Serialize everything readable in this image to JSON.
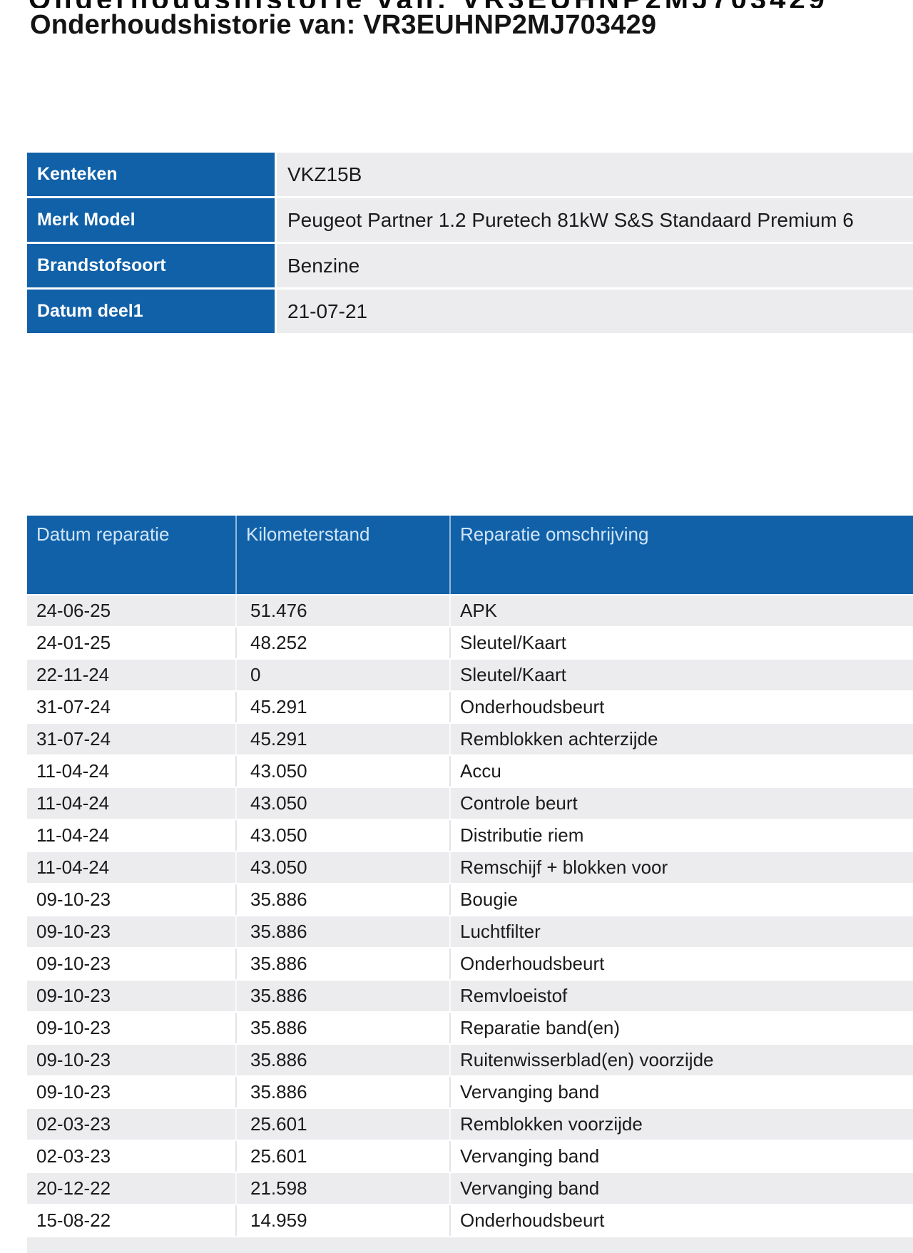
{
  "page_title": "Onderhoudshistorie van: VR3EUHNP2MJ703429",
  "top_clipped_text": "Onderhoudshistorie van: VR3EUHNP2MJ703429",
  "colors": {
    "brand_blue": "#1161a8",
    "header_text": "#cfe5f8",
    "cell_gray": "#ececef"
  },
  "vehicle_info": {
    "rows": [
      {
        "label": "Kenteken",
        "value": "VKZ15B"
      },
      {
        "label": "Merk Model",
        "value": "Peugeot Partner 1.2 Puretech 81kW S&S Standaard Premium 6"
      },
      {
        "label": "Brandstofsoort",
        "value": "Benzine"
      },
      {
        "label": "Datum deel1",
        "value": "21-07-21"
      }
    ]
  },
  "history": {
    "headers": [
      "Datum reparatie",
      "Kilometerstand",
      "Reparatie omschrijving"
    ],
    "rows": [
      {
        "date": "24-06-25",
        "km": "51.476",
        "desc": "APK"
      },
      {
        "date": "24-01-25",
        "km": "48.252",
        "desc": "Sleutel/Kaart"
      },
      {
        "date": "22-11-24",
        "km": "0",
        "desc": "Sleutel/Kaart"
      },
      {
        "date": "31-07-24",
        "km": "45.291",
        "desc": "Onderhoudsbeurt"
      },
      {
        "date": "31-07-24",
        "km": "45.291",
        "desc": "Remblokken achterzijde"
      },
      {
        "date": "11-04-24",
        "km": "43.050",
        "desc": "Accu"
      },
      {
        "date": "11-04-24",
        "km": "43.050",
        "desc": "Controle beurt"
      },
      {
        "date": "11-04-24",
        "km": "43.050",
        "desc": "Distributie riem"
      },
      {
        "date": "11-04-24",
        "km": "43.050",
        "desc": "Remschijf + blokken voor"
      },
      {
        "date": "09-10-23",
        "km": "35.886",
        "desc": "Bougie"
      },
      {
        "date": "09-10-23",
        "km": "35.886",
        "desc": "Luchtfilter"
      },
      {
        "date": "09-10-23",
        "km": "35.886",
        "desc": "Onderhoudsbeurt"
      },
      {
        "date": "09-10-23",
        "km": "35.886",
        "desc": "Remvloeistof"
      },
      {
        "date": "09-10-23",
        "km": "35.886",
        "desc": "Reparatie band(en)"
      },
      {
        "date": "09-10-23",
        "km": "35.886",
        "desc": "Ruitenwisserblad(en) voorzijde"
      },
      {
        "date": "09-10-23",
        "km": "35.886",
        "desc": "Vervanging band"
      },
      {
        "date": "02-03-23",
        "km": "25.601",
        "desc": "Remblokken voorzijde"
      },
      {
        "date": "02-03-23",
        "km": "25.601",
        "desc": "Vervanging band"
      },
      {
        "date": "20-12-22",
        "km": "21.598",
        "desc": "Vervanging band"
      },
      {
        "date": "15-08-22",
        "km": "14.959",
        "desc": "Onderhoudsbeurt"
      }
    ],
    "partial_row_at_bottom": true
  }
}
